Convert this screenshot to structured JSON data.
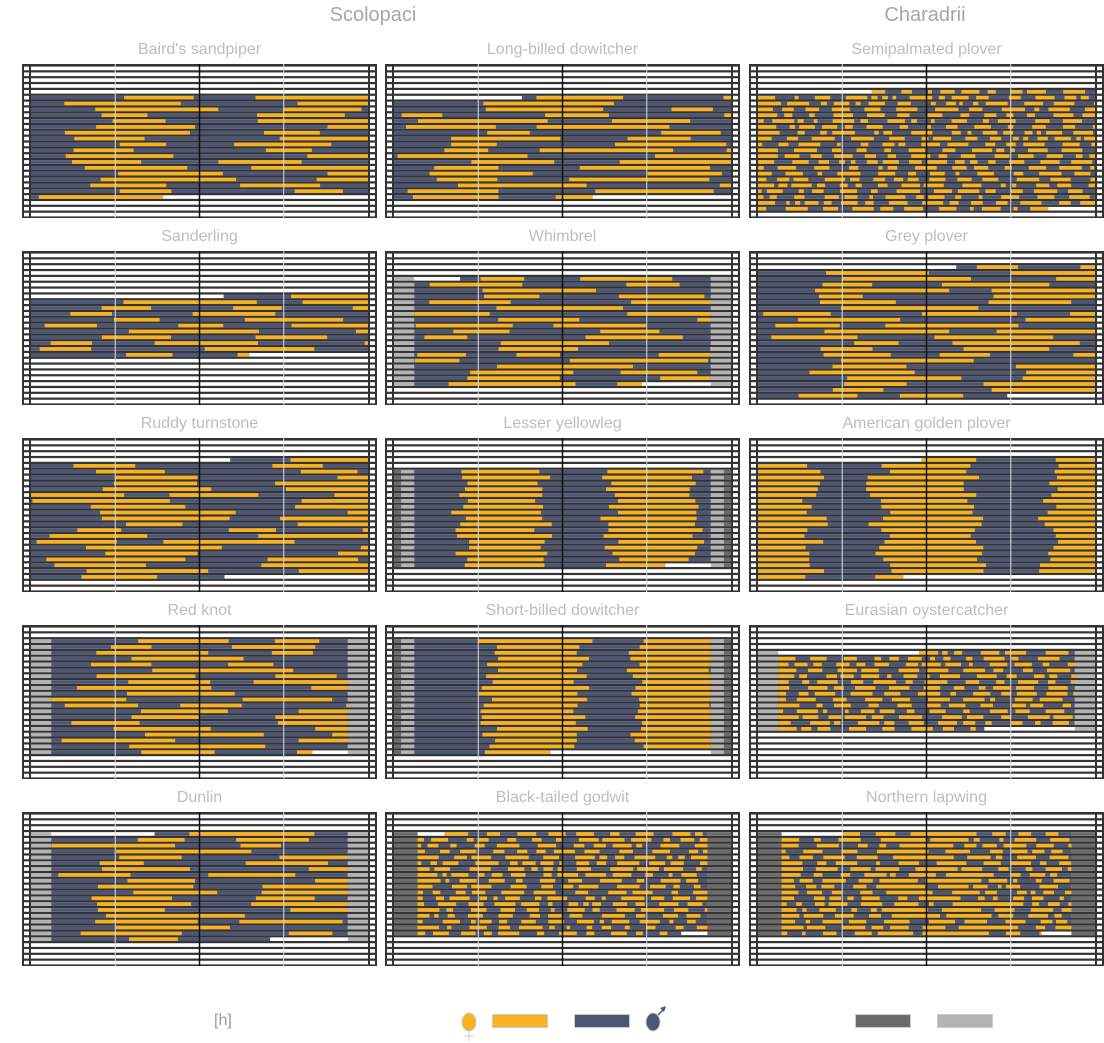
{
  "orders": [
    "Scolopaci",
    "Charadrii"
  ],
  "legend": {
    "time_unit": "[h]",
    "female_color": "#F9B21F",
    "male_color": "#4E5675",
    "twilight_dark_color": "#6B6B6B",
    "twilight_light_color": "#B3B3B3"
  },
  "chart_data": {
    "type": "table",
    "description_rows": 26,
    "panels": [
      {
        "title": "Baird's sandpiper",
        "order": "Scolopaci",
        "pattern": "long",
        "rows": [
          5,
          22
        ],
        "twilight": "none"
      },
      {
        "title": "Long-billed dowitcher",
        "order": "Scolopaci",
        "pattern": "long",
        "rows": [
          5,
          22
        ],
        "twilight": "none"
      },
      {
        "title": "Semipalmated plover",
        "order": "Charadrii",
        "pattern": "fine",
        "rows": [
          4,
          24
        ],
        "twilight": "none"
      },
      {
        "title": "Sanderling",
        "order": "Scolopaci",
        "pattern": "long",
        "rows": [
          7,
          17
        ],
        "twilight": "none"
      },
      {
        "title": "Whimbrel",
        "order": "Scolopaci",
        "pattern": "long",
        "rows": [
          4,
          22
        ],
        "twilight": "light"
      },
      {
        "title": "Grey plover",
        "order": "Charadrii",
        "pattern": "long",
        "rows": [
          2,
          24
        ],
        "twilight": "none"
      },
      {
        "title": "Ruddy turnstone",
        "order": "Scolopaci",
        "pattern": "long",
        "rows": [
          3,
          23
        ],
        "twilight": "none"
      },
      {
        "title": "Lesser yellowleg",
        "order": "Scolopaci",
        "pattern": "bands",
        "bands": [
          [
            0.2,
            0.44
          ],
          [
            0.64,
            0.9
          ]
        ],
        "rows": [
          5,
          21
        ],
        "twilight": "both"
      },
      {
        "title": "American golden plover",
        "order": "Charadrii",
        "pattern": "inverse-bands",
        "bands": [
          [
            0.17,
            0.36
          ],
          [
            0.64,
            0.86
          ]
        ],
        "rows": [
          3,
          23
        ],
        "twilight": "none"
      },
      {
        "title": "Red knot",
        "order": "Scolopaci",
        "pattern": "long",
        "rows": [
          2,
          21
        ],
        "twilight": "light"
      },
      {
        "title": "Short-billed dowitcher",
        "order": "Scolopaci",
        "pattern": "bands",
        "bands": [
          [
            0.28,
            0.56
          ],
          [
            0.72,
            0.96
          ]
        ],
        "rows": [
          2,
          21
        ],
        "twilight": "both"
      },
      {
        "title": "Eurasian oystercatcher",
        "order": "Charadrii",
        "pattern": "fine",
        "rows": [
          4,
          17
        ],
        "twilight": "light"
      },
      {
        "title": "Dunlin",
        "order": "Scolopaci",
        "pattern": "long",
        "rows": [
          3,
          21
        ],
        "twilight": "light"
      },
      {
        "title": "Black-tailed godwit",
        "order": "Scolopaci",
        "pattern": "fine",
        "rows": [
          3,
          20
        ],
        "twilight": "dark"
      },
      {
        "title": "Northern lapwing",
        "order": "Charadrii",
        "pattern": "mixed",
        "rows": [
          3,
          20
        ],
        "twilight": "dark"
      }
    ]
  }
}
